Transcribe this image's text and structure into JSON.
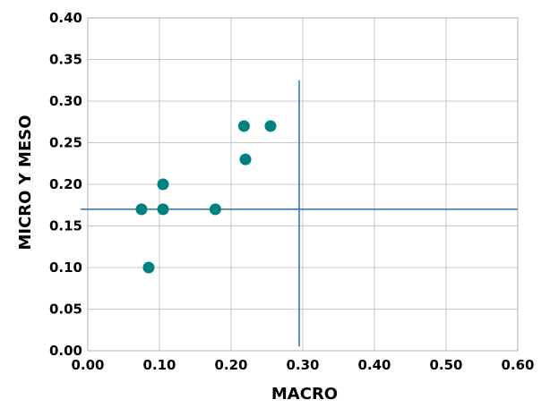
{
  "chart_data": {
    "type": "scatter",
    "xlabel": "MACRO",
    "ylabel": "MICRO Y MESO",
    "xlim": [
      0,
      0.6
    ],
    "ylim": [
      0,
      0.4
    ],
    "x_ticks": [
      "0.00",
      "0.10",
      "0.20",
      "0.30",
      "0.40",
      "0.50",
      "0.60"
    ],
    "y_ticks": [
      "0.00",
      "0.05",
      "0.10",
      "0.15",
      "0.20",
      "0.25",
      "0.30",
      "0.35",
      "0.40"
    ],
    "x_tick_values": [
      0,
      0.1,
      0.2,
      0.3,
      0.4,
      0.5,
      0.6
    ],
    "y_tick_values": [
      0,
      0.05,
      0.1,
      0.15,
      0.2,
      0.25,
      0.3,
      0.35,
      0.4
    ],
    "grid": true,
    "points": [
      {
        "x": 0.075,
        "y": 0.17
      },
      {
        "x": 0.085,
        "y": 0.1
      },
      {
        "x": 0.105,
        "y": 0.2
      },
      {
        "x": 0.105,
        "y": 0.17
      },
      {
        "x": 0.178,
        "y": 0.17
      },
      {
        "x": 0.218,
        "y": 0.27
      },
      {
        "x": 0.22,
        "y": 0.23
      },
      {
        "x": 0.255,
        "y": 0.27
      }
    ],
    "reference_lines": {
      "vertical": {
        "x": 0.295,
        "y_range": [
          0.005,
          0.325
        ]
      },
      "horizontal": {
        "y": 0.17,
        "x_range": [
          -0.01,
          0.6
        ]
      }
    },
    "colors": {
      "points": "#00807f",
      "reference_lines": "#2e6db5",
      "grid": "#c8c8c8",
      "axes": "#b0b0b0"
    }
  }
}
